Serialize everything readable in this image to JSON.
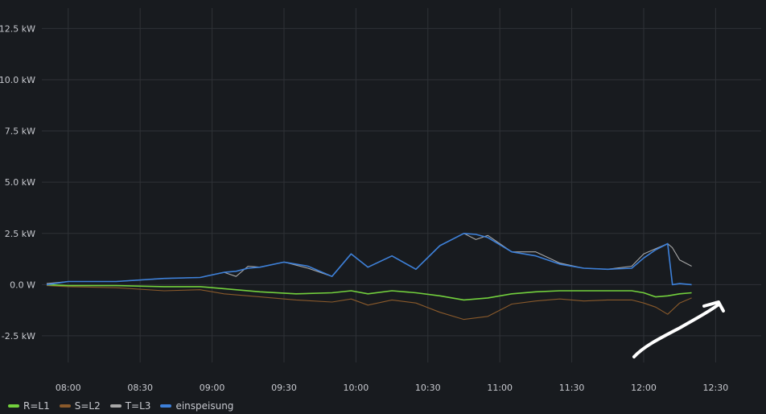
{
  "chart_data": {
    "type": "line",
    "title": "",
    "xlabel": "",
    "ylabel": "",
    "x_range": [
      "07:49",
      "12:49"
    ],
    "ylim": [
      -3.8,
      13.5
    ],
    "x_ticks": [
      "08:00",
      "08:30",
      "09:00",
      "09:30",
      "10:00",
      "10:30",
      "11:00",
      "11:30",
      "12:00",
      "12:30"
    ],
    "y_ticks": [
      {
        "value": -2.5,
        "label": "-2.5 kW"
      },
      {
        "value": 0,
        "label": "0.0 W"
      },
      {
        "value": 2.5,
        "label": "2.5 kW"
      },
      {
        "value": 5.0,
        "label": "5.0 kW"
      },
      {
        "value": 7.5,
        "label": "7.5 kW"
      },
      {
        "value": 10.0,
        "label": "10.0 kW"
      },
      {
        "value": 12.5,
        "label": "12.5 kW"
      }
    ],
    "grid": true,
    "legend_position": "bottom-left",
    "series": [
      {
        "name": "R=L1",
        "color": "#73d13d",
        "x": [
          "07:51",
          "08:00",
          "08:20",
          "08:40",
          "08:55",
          "09:05",
          "09:20",
          "09:35",
          "09:50",
          "09:58",
          "10:05",
          "10:15",
          "10:25",
          "10:35",
          "10:45",
          "10:55",
          "11:05",
          "11:15",
          "11:25",
          "11:35",
          "11:45",
          "11:55",
          "12:00",
          "12:05",
          "12:10",
          "12:15",
          "12:20"
        ],
        "y": [
          0.0,
          -0.05,
          -0.05,
          -0.1,
          -0.1,
          -0.2,
          -0.35,
          -0.45,
          -0.4,
          -0.3,
          -0.45,
          -0.3,
          -0.4,
          -0.55,
          -0.75,
          -0.65,
          -0.45,
          -0.35,
          -0.3,
          -0.3,
          -0.3,
          -0.3,
          -0.4,
          -0.6,
          -0.55,
          -0.45,
          -0.4
        ]
      },
      {
        "name": "S=L2",
        "color": "#8a5a2b",
        "x": [
          "07:51",
          "08:00",
          "08:20",
          "08:40",
          "08:55",
          "09:05",
          "09:20",
          "09:35",
          "09:50",
          "09:58",
          "10:05",
          "10:15",
          "10:25",
          "10:35",
          "10:45",
          "10:55",
          "11:05",
          "11:15",
          "11:25",
          "11:35",
          "11:45",
          "11:55",
          "12:00",
          "12:05",
          "12:10",
          "12:15",
          "12:20"
        ],
        "y": [
          -0.05,
          -0.1,
          -0.15,
          -0.3,
          -0.25,
          -0.45,
          -0.6,
          -0.75,
          -0.85,
          -0.7,
          -1.0,
          -0.75,
          -0.9,
          -1.35,
          -1.7,
          -1.55,
          -0.95,
          -0.8,
          -0.7,
          -0.8,
          -0.75,
          -0.75,
          -0.9,
          -1.1,
          -1.45,
          -0.9,
          -0.65
        ]
      },
      {
        "name": "T=L3",
        "color": "#a8a8a8",
        "x": [
          "07:51",
          "08:00",
          "08:20",
          "08:40",
          "08:55",
          "09:05",
          "09:10",
          "09:15",
          "09:20",
          "09:30",
          "09:40",
          "09:50",
          "09:58",
          "10:05",
          "10:15",
          "10:25",
          "10:35",
          "10:45",
          "10:50",
          "10:55",
          "11:05",
          "11:15",
          "11:25",
          "11:35",
          "11:45",
          "11:55",
          "12:00",
          "12:05",
          "12:10",
          "12:12",
          "12:15",
          "12:20"
        ],
        "y": [
          0.05,
          0.15,
          0.15,
          0.3,
          0.35,
          0.6,
          0.4,
          0.9,
          0.85,
          1.1,
          0.8,
          0.4,
          1.5,
          0.85,
          1.4,
          0.75,
          1.9,
          2.5,
          2.2,
          2.4,
          1.6,
          1.6,
          1.05,
          0.8,
          0.75,
          0.9,
          1.5,
          1.75,
          2.0,
          1.8,
          1.2,
          0.9
        ]
      },
      {
        "name": "einspeisung",
        "color": "#3d80d9",
        "x": [
          "07:51",
          "08:00",
          "08:20",
          "08:40",
          "08:55",
          "09:05",
          "09:10",
          "09:15",
          "09:20",
          "09:30",
          "09:40",
          "09:50",
          "09:58",
          "10:05",
          "10:15",
          "10:25",
          "10:35",
          "10:45",
          "10:50",
          "10:55",
          "11:05",
          "11:15",
          "11:25",
          "11:35",
          "11:45",
          "11:55",
          "12:00",
          "12:05",
          "12:10",
          "12:12",
          "12:15",
          "12:20"
        ],
        "y": [
          0.0,
          0.15,
          0.15,
          0.3,
          0.35,
          0.6,
          0.65,
          0.8,
          0.85,
          1.1,
          0.9,
          0.4,
          1.5,
          0.85,
          1.4,
          0.75,
          1.9,
          2.5,
          2.45,
          2.3,
          1.6,
          1.4,
          1.0,
          0.8,
          0.75,
          0.8,
          1.3,
          1.7,
          2.0,
          0.0,
          0.05,
          0.0
        ]
      }
    ]
  },
  "annotation": {
    "type": "arrow",
    "color": "#ffffff"
  }
}
